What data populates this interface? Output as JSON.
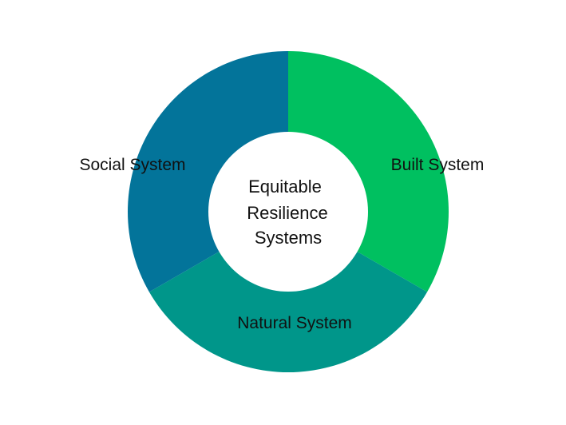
{
  "diagram": {
    "center": {
      "lines": [
        "Equitable",
        "Resilience",
        "Systems"
      ]
    },
    "segments": [
      {
        "label": "Built System",
        "color": "#00c060"
      },
      {
        "label": "Natural System",
        "color": "#00968a"
      },
      {
        "label": "Social System",
        "color": "#03749a"
      }
    ],
    "center_color": "#ffffff"
  }
}
